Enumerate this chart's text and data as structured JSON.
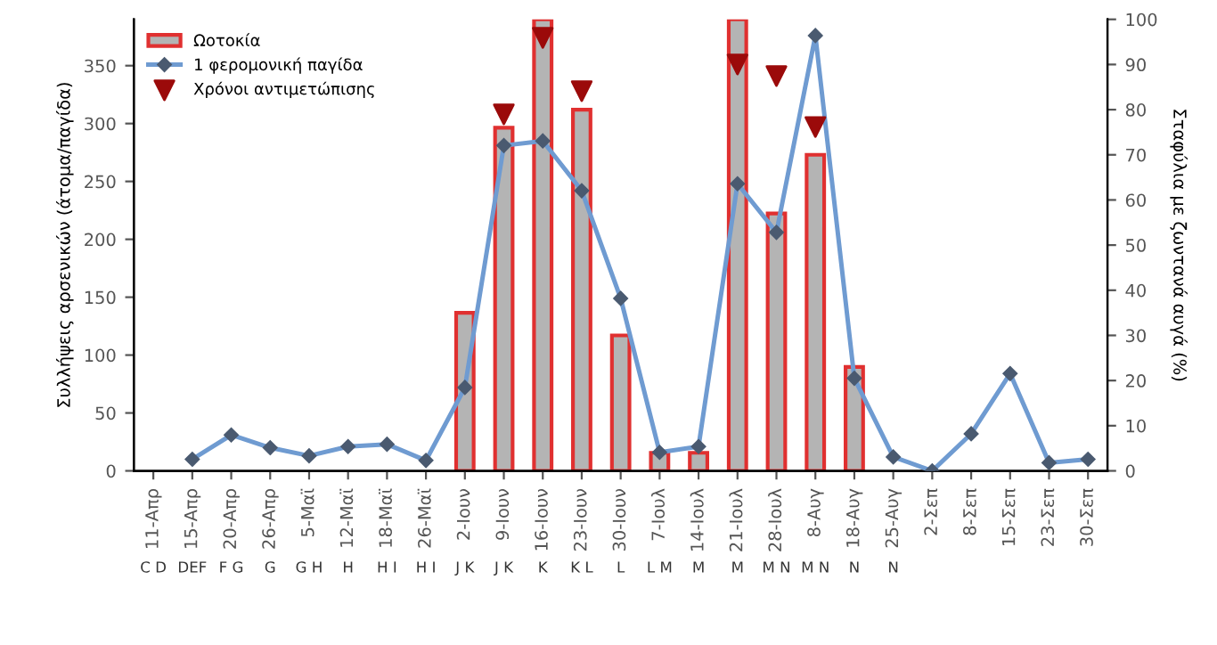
{
  "chart_data": {
    "type": "bar",
    "categories": [
      "11-Απρ",
      "15-Απρ",
      "20-Απρ",
      "26-Απρ",
      "5-Μαϊ",
      "12-Μαϊ",
      "18-Μαϊ",
      "26-Μαϊ",
      "2-Ιουν",
      "9-Ιουν",
      "16-Ιουν",
      "23-Ιουν",
      "30-Ιουν",
      "7-Ιουλ",
      "14-Ιουλ",
      "21-Ιουλ",
      "28-Ιουλ",
      "8-Αυγ",
      "18-Αυγ",
      "25-Αυγ",
      "2-Σεπ",
      "8-Σεπ",
      "15-Σεπ",
      "23-Σεπ",
      "30-Σεπ"
    ],
    "ylabel": "Συλλήψεις αρσενικών (άτομα/παγίδα)",
    "y2label": "Σταφύλια με ζωντανά αυγά (%)",
    "ylim": [
      0,
      390
    ],
    "yticks": [
      0,
      50,
      100,
      150,
      200,
      250,
      300,
      350
    ],
    "y2lim": [
      0,
      100
    ],
    "y2ticks": [
      0,
      10,
      20,
      30,
      40,
      50,
      60,
      70,
      80,
      90,
      100
    ],
    "grid": false,
    "legend": "top left",
    "series": [
      {
        "name": "Ωοτοκία",
        "axis": "y2",
        "color": "#b4b4b4",
        "values": [
          null,
          null,
          null,
          null,
          null,
          null,
          null,
          null,
          35,
          76,
          100,
          80,
          30,
          4,
          4,
          100,
          57,
          70,
          23,
          null,
          null,
          null,
          null,
          null,
          null
        ]
      },
      {
        "name": "1 φερομονική παγίδα",
        "type": "line",
        "color": "#6f9bd1",
        "marker": "diamond",
        "line_style": "solid",
        "values": [
          null,
          10,
          31,
          20,
          13,
          21,
          23,
          9,
          72,
          281,
          285,
          242,
          149,
          16,
          21,
          248,
          206,
          376,
          80,
          12,
          0,
          32,
          84,
          7,
          10
        ]
      },
      {
        "name": "Χρόνοι αντιμετώπισης",
        "type": "scatter",
        "color": "#9b0a0a",
        "marker": "triangle",
        "x": [
          "9-Ιουν",
          "16-Ιουν",
          "23-Ιουν",
          "21-Ιουλ",
          "28-Ιουλ",
          "8-Αυγ"
        ],
        "values": [
          308,
          374,
          328,
          351,
          341,
          297
        ]
      }
    ],
    "annotations": [
      "C D",
      "DEF",
      "F G",
      "G",
      "G H",
      "H",
      "H I",
      "H I",
      "J K",
      "J K",
      "K",
      "K L",
      "L",
      "L M",
      "M",
      "M",
      "M N",
      "M N",
      "N",
      "N"
    ]
  }
}
